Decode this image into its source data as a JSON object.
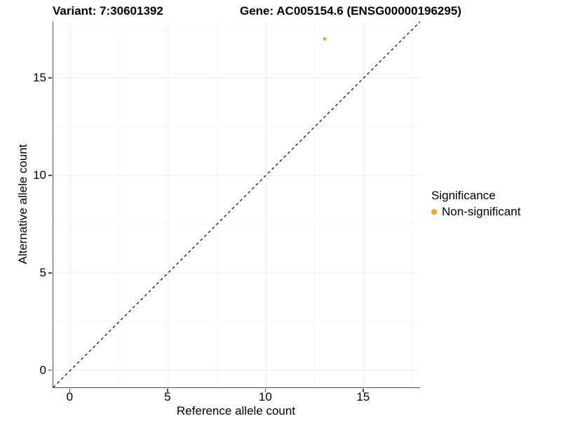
{
  "chart_data": {
    "type": "scatter",
    "title_left": "Variant: 7:30601392",
    "title_right": "Gene: AC005154.6 (ENSG00000196295)",
    "xlabel": "Reference allele count",
    "ylabel": "Alternative allele count",
    "xlim": [
      -0.875,
      17.875
    ],
    "ylim": [
      -0.875,
      17.875
    ],
    "x_major_ticks": [
      0,
      5,
      10,
      15
    ],
    "y_major_ticks": [
      0,
      5,
      10,
      15
    ],
    "x_minor_ticks": [
      2.5,
      7.5,
      12.5,
      17.5
    ],
    "y_minor_ticks": [
      2.5,
      7.5,
      12.5,
      17.5
    ],
    "grid": "major and minor gridlines on white panel",
    "identity_line": {
      "style": "dashed",
      "color": "#000000",
      "from": [
        -0.875,
        -0.875
      ],
      "to": [
        17.875,
        17.875
      ]
    },
    "series": [
      {
        "name": "Non-significant",
        "color": "#F89E2E",
        "marker": "circle",
        "points": [
          {
            "x": 13,
            "y": 17
          }
        ]
      }
    ],
    "legend": {
      "title": "Significance",
      "position": "right",
      "items": [
        {
          "label": "Non-significant",
          "color": "#F89E2E",
          "marker": "circle"
        }
      ]
    },
    "colors": {
      "background": "#FFFFFF",
      "major_grid": "#EBEBEB",
      "minor_grid": "#F5F5F5",
      "axis_line": "#4D4D4D",
      "text": "#000000"
    }
  }
}
